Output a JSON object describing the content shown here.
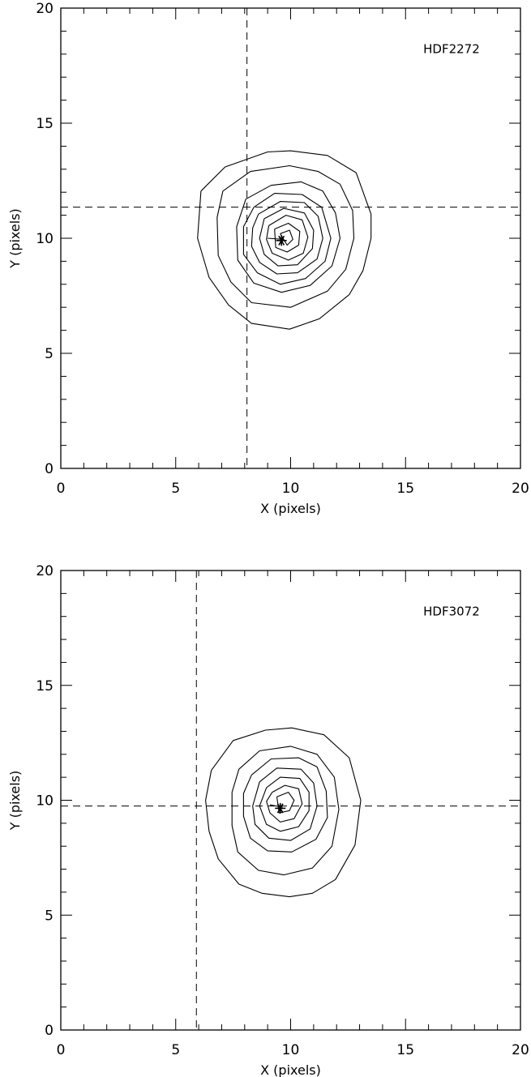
{
  "chart_data": [
    {
      "type": "contour",
      "label": "HDF2272",
      "xlabel": "X (pixels)",
      "ylabel": "Y (pixels)",
      "xlim": [
        0,
        20
      ],
      "ylim": [
        0,
        20
      ],
      "major_ticks": [
        0,
        5,
        10,
        15,
        20
      ],
      "major_tick_labels": [
        "0",
        "5",
        "10",
        "15",
        "20"
      ],
      "minor_tick_step": 1,
      "grid": false,
      "center_marker": [
        9.6,
        9.9
      ],
      "dashed_lines": {
        "x": 8.1,
        "y": 11.35
      },
      "contours": [
        [
          [
            6.1,
            12.05
          ],
          [
            7.15,
            13.1
          ],
          [
            9.0,
            13.75
          ],
          [
            10.0,
            13.8
          ],
          [
            11.6,
            13.6
          ],
          [
            12.85,
            12.85
          ],
          [
            13.5,
            11.05
          ],
          [
            13.5,
            10.0
          ],
          [
            13.15,
            8.6
          ],
          [
            12.55,
            7.55
          ],
          [
            11.25,
            6.5
          ],
          [
            9.95,
            6.05
          ],
          [
            8.3,
            6.3
          ],
          [
            7.3,
            7.1
          ],
          [
            6.45,
            8.3
          ],
          [
            5.95,
            10.0
          ],
          [
            6.1,
            12.05
          ]
        ],
        [
          [
            7.05,
            12.05
          ],
          [
            8.25,
            12.9
          ],
          [
            9.95,
            13.15
          ],
          [
            11.2,
            12.9
          ],
          [
            12.15,
            12.35
          ],
          [
            12.7,
            11.2
          ],
          [
            12.75,
            10.0
          ],
          [
            12.4,
            8.65
          ],
          [
            11.6,
            7.7
          ],
          [
            10.0,
            7.0
          ],
          [
            8.3,
            7.2
          ],
          [
            7.4,
            8.1
          ],
          [
            6.85,
            9.25
          ],
          [
            6.8,
            10.9
          ],
          [
            7.05,
            12.05
          ]
        ],
        [
          [
            8.05,
            11.7
          ],
          [
            9.15,
            12.3
          ],
          [
            10.45,
            12.45
          ],
          [
            11.4,
            12.05
          ],
          [
            11.95,
            11.1
          ],
          [
            12.15,
            10.0
          ],
          [
            11.8,
            8.8
          ],
          [
            10.85,
            7.95
          ],
          [
            9.6,
            7.65
          ],
          [
            8.4,
            8.05
          ],
          [
            7.7,
            9.05
          ],
          [
            7.65,
            10.5
          ],
          [
            8.05,
            11.7
          ]
        ],
        [
          [
            8.4,
            11.35
          ],
          [
            9.3,
            11.95
          ],
          [
            10.5,
            11.9
          ],
          [
            11.35,
            11.35
          ],
          [
            11.75,
            10.0
          ],
          [
            11.5,
            9.0
          ],
          [
            10.65,
            8.25
          ],
          [
            9.55,
            8.0
          ],
          [
            8.55,
            8.5
          ],
          [
            7.95,
            9.3
          ],
          [
            7.95,
            10.5
          ],
          [
            8.4,
            11.35
          ]
        ],
        [
          [
            8.6,
            11.05
          ],
          [
            9.55,
            11.6
          ],
          [
            10.6,
            11.55
          ],
          [
            11.2,
            10.95
          ],
          [
            11.4,
            10.0
          ],
          [
            11.15,
            9.1
          ],
          [
            10.3,
            8.5
          ],
          [
            9.4,
            8.45
          ],
          [
            8.65,
            8.95
          ],
          [
            8.3,
            9.65
          ],
          [
            8.35,
            10.45
          ],
          [
            8.6,
            11.05
          ]
        ],
        [
          [
            8.85,
            10.85
          ],
          [
            9.7,
            11.3
          ],
          [
            10.6,
            11.1
          ],
          [
            11.0,
            10.35
          ],
          [
            10.95,
            9.55
          ],
          [
            10.3,
            8.85
          ],
          [
            9.45,
            8.8
          ],
          [
            8.85,
            9.3
          ],
          [
            8.65,
            10.0
          ],
          [
            8.85,
            10.85
          ]
        ],
        [
          [
            9.05,
            10.55
          ],
          [
            9.8,
            11.0
          ],
          [
            10.5,
            10.8
          ],
          [
            10.75,
            10.05
          ],
          [
            10.55,
            9.35
          ],
          [
            9.9,
            9.05
          ],
          [
            9.2,
            9.35
          ],
          [
            8.95,
            9.95
          ],
          [
            9.05,
            10.55
          ]
        ],
        [
          [
            9.3,
            10.4
          ],
          [
            9.9,
            10.65
          ],
          [
            10.4,
            10.3
          ],
          [
            10.35,
            9.7
          ],
          [
            9.85,
            9.4
          ],
          [
            9.35,
            9.6
          ],
          [
            9.3,
            10.4
          ]
        ],
        [
          [
            9.55,
            10.2
          ],
          [
            9.95,
            10.35
          ],
          [
            10.1,
            9.95
          ],
          [
            9.85,
            9.7
          ],
          [
            9.55,
            10.2
          ]
        ],
        [
          [
            9.0,
            10.0
          ],
          [
            9.7,
            9.95
          ]
        ]
      ]
    },
    {
      "type": "contour",
      "label": "HDF3072",
      "xlabel": "X (pixels)",
      "ylabel": "Y (pixels)",
      "xlim": [
        0,
        20
      ],
      "ylim": [
        0,
        20
      ],
      "major_ticks": [
        0,
        5,
        10,
        15,
        20
      ],
      "major_tick_labels": [
        "0",
        "5",
        "10",
        "15",
        "20"
      ],
      "minor_tick_step": 1,
      "grid": false,
      "center_marker": [
        9.55,
        9.65
      ],
      "dashed_lines": {
        "x": 5.9,
        "y": 9.75
      },
      "contours": [
        [
          [
            6.55,
            11.3
          ],
          [
            7.5,
            12.6
          ],
          [
            8.9,
            13.05
          ],
          [
            10.05,
            13.15
          ],
          [
            11.45,
            12.85
          ],
          [
            12.55,
            11.85
          ],
          [
            13.05,
            10.0
          ],
          [
            12.8,
            8.05
          ],
          [
            11.95,
            6.55
          ],
          [
            10.95,
            5.95
          ],
          [
            9.95,
            5.8
          ],
          [
            8.75,
            5.95
          ],
          [
            7.75,
            6.35
          ],
          [
            6.85,
            7.45
          ],
          [
            6.45,
            8.65
          ],
          [
            6.3,
            10.0
          ],
          [
            6.55,
            11.3
          ]
        ],
        [
          [
            7.75,
            11.35
          ],
          [
            8.65,
            12.15
          ],
          [
            10.0,
            12.35
          ],
          [
            11.15,
            12.0
          ],
          [
            11.9,
            11.0
          ],
          [
            12.1,
            9.6
          ],
          [
            11.8,
            8.0
          ],
          [
            10.95,
            7.05
          ],
          [
            9.7,
            6.75
          ],
          [
            8.6,
            6.95
          ],
          [
            7.7,
            7.75
          ],
          [
            7.45,
            8.9
          ],
          [
            7.45,
            10.35
          ],
          [
            7.75,
            11.35
          ]
        ],
        [
          [
            8.3,
            11.1
          ],
          [
            9.15,
            11.8
          ],
          [
            10.35,
            11.85
          ],
          [
            11.15,
            11.45
          ],
          [
            11.55,
            10.4
          ],
          [
            11.6,
            9.25
          ],
          [
            11.1,
            8.3
          ],
          [
            10.05,
            7.75
          ],
          [
            9.0,
            7.8
          ],
          [
            8.25,
            8.35
          ],
          [
            7.95,
            9.3
          ],
          [
            7.95,
            10.3
          ],
          [
            8.3,
            11.1
          ]
        ],
        [
          [
            8.65,
            10.8
          ],
          [
            9.4,
            11.4
          ],
          [
            10.45,
            11.35
          ],
          [
            11.0,
            10.75
          ],
          [
            11.15,
            9.75
          ],
          [
            10.85,
            8.75
          ],
          [
            10.0,
            8.25
          ],
          [
            9.05,
            8.35
          ],
          [
            8.45,
            8.95
          ],
          [
            8.35,
            9.75
          ],
          [
            8.65,
            10.8
          ]
        ],
        [
          [
            8.95,
            10.55
          ],
          [
            9.55,
            11.0
          ],
          [
            10.4,
            10.95
          ],
          [
            10.8,
            10.35
          ],
          [
            10.8,
            9.55
          ],
          [
            10.35,
            8.85
          ],
          [
            9.55,
            8.65
          ],
          [
            8.95,
            8.95
          ],
          [
            8.65,
            9.75
          ],
          [
            8.95,
            10.55
          ]
        ],
        [
          [
            9.2,
            10.35
          ],
          [
            9.75,
            10.65
          ],
          [
            10.35,
            10.5
          ],
          [
            10.5,
            9.85
          ],
          [
            10.15,
            9.2
          ],
          [
            9.55,
            9.05
          ],
          [
            9.1,
            9.45
          ],
          [
            8.95,
            9.95
          ],
          [
            9.2,
            10.35
          ]
        ],
        [
          [
            9.4,
            10.15
          ],
          [
            9.9,
            10.35
          ],
          [
            10.15,
            10.0
          ],
          [
            9.95,
            9.55
          ],
          [
            9.5,
            9.45
          ],
          [
            9.4,
            10.15
          ]
        ],
        [
          [
            9.1,
            9.8
          ],
          [
            9.65,
            9.7
          ]
        ]
      ]
    }
  ]
}
